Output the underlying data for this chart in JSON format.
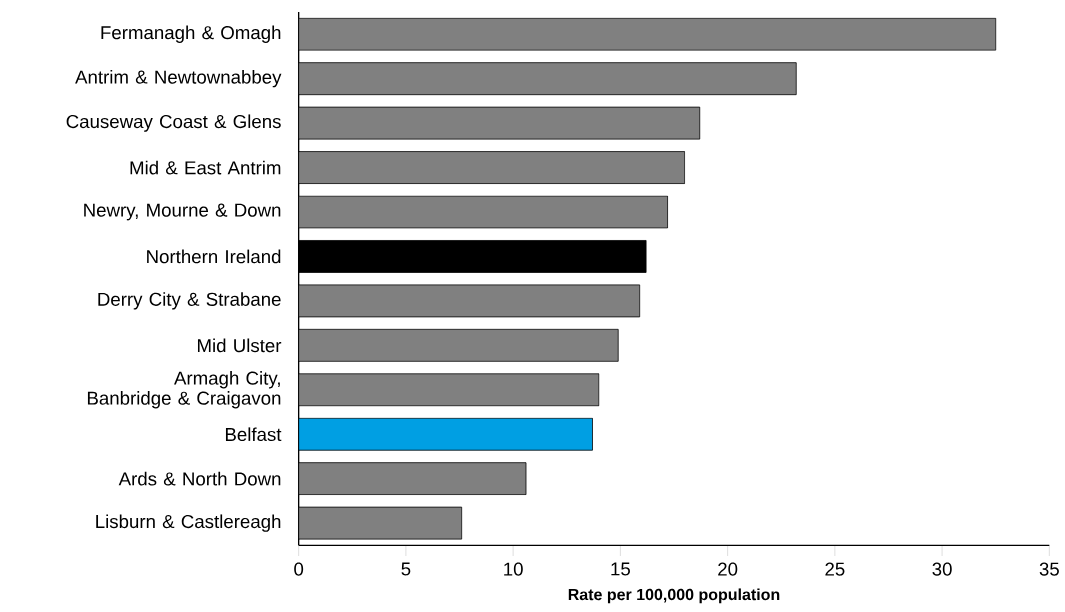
{
  "chart_data": {
    "type": "bar",
    "orientation": "horizontal",
    "xlabel": "Rate per 100,000 population",
    "categories": [
      "Fermanagh & Omagh",
      "Antrim & Newtownabbey",
      "Causeway Coast & Glens",
      "Mid & East Antrim",
      "Newry, Mourne & Down",
      "Northern Ireland",
      "Derry City & Strabane",
      "Mid Ulster",
      "Armagh City, Banbridge & Craigavon",
      "Belfast",
      "Ards & North Down",
      "Lisburn & Castlereagh"
    ],
    "values": [
      32.5,
      23.2,
      18.7,
      18.0,
      17.2,
      16.2,
      15.9,
      14.9,
      14.0,
      13.7,
      10.6,
      7.6
    ],
    "colors": [
      "#808080",
      "#808080",
      "#808080",
      "#808080",
      "#808080",
      "#000000",
      "#808080",
      "#808080",
      "#808080",
      "#009fe3",
      "#808080",
      "#808080"
    ],
    "xlim": [
      0,
      35
    ],
    "xticks": [
      0,
      5,
      10,
      15,
      20,
      25,
      30,
      35
    ]
  }
}
